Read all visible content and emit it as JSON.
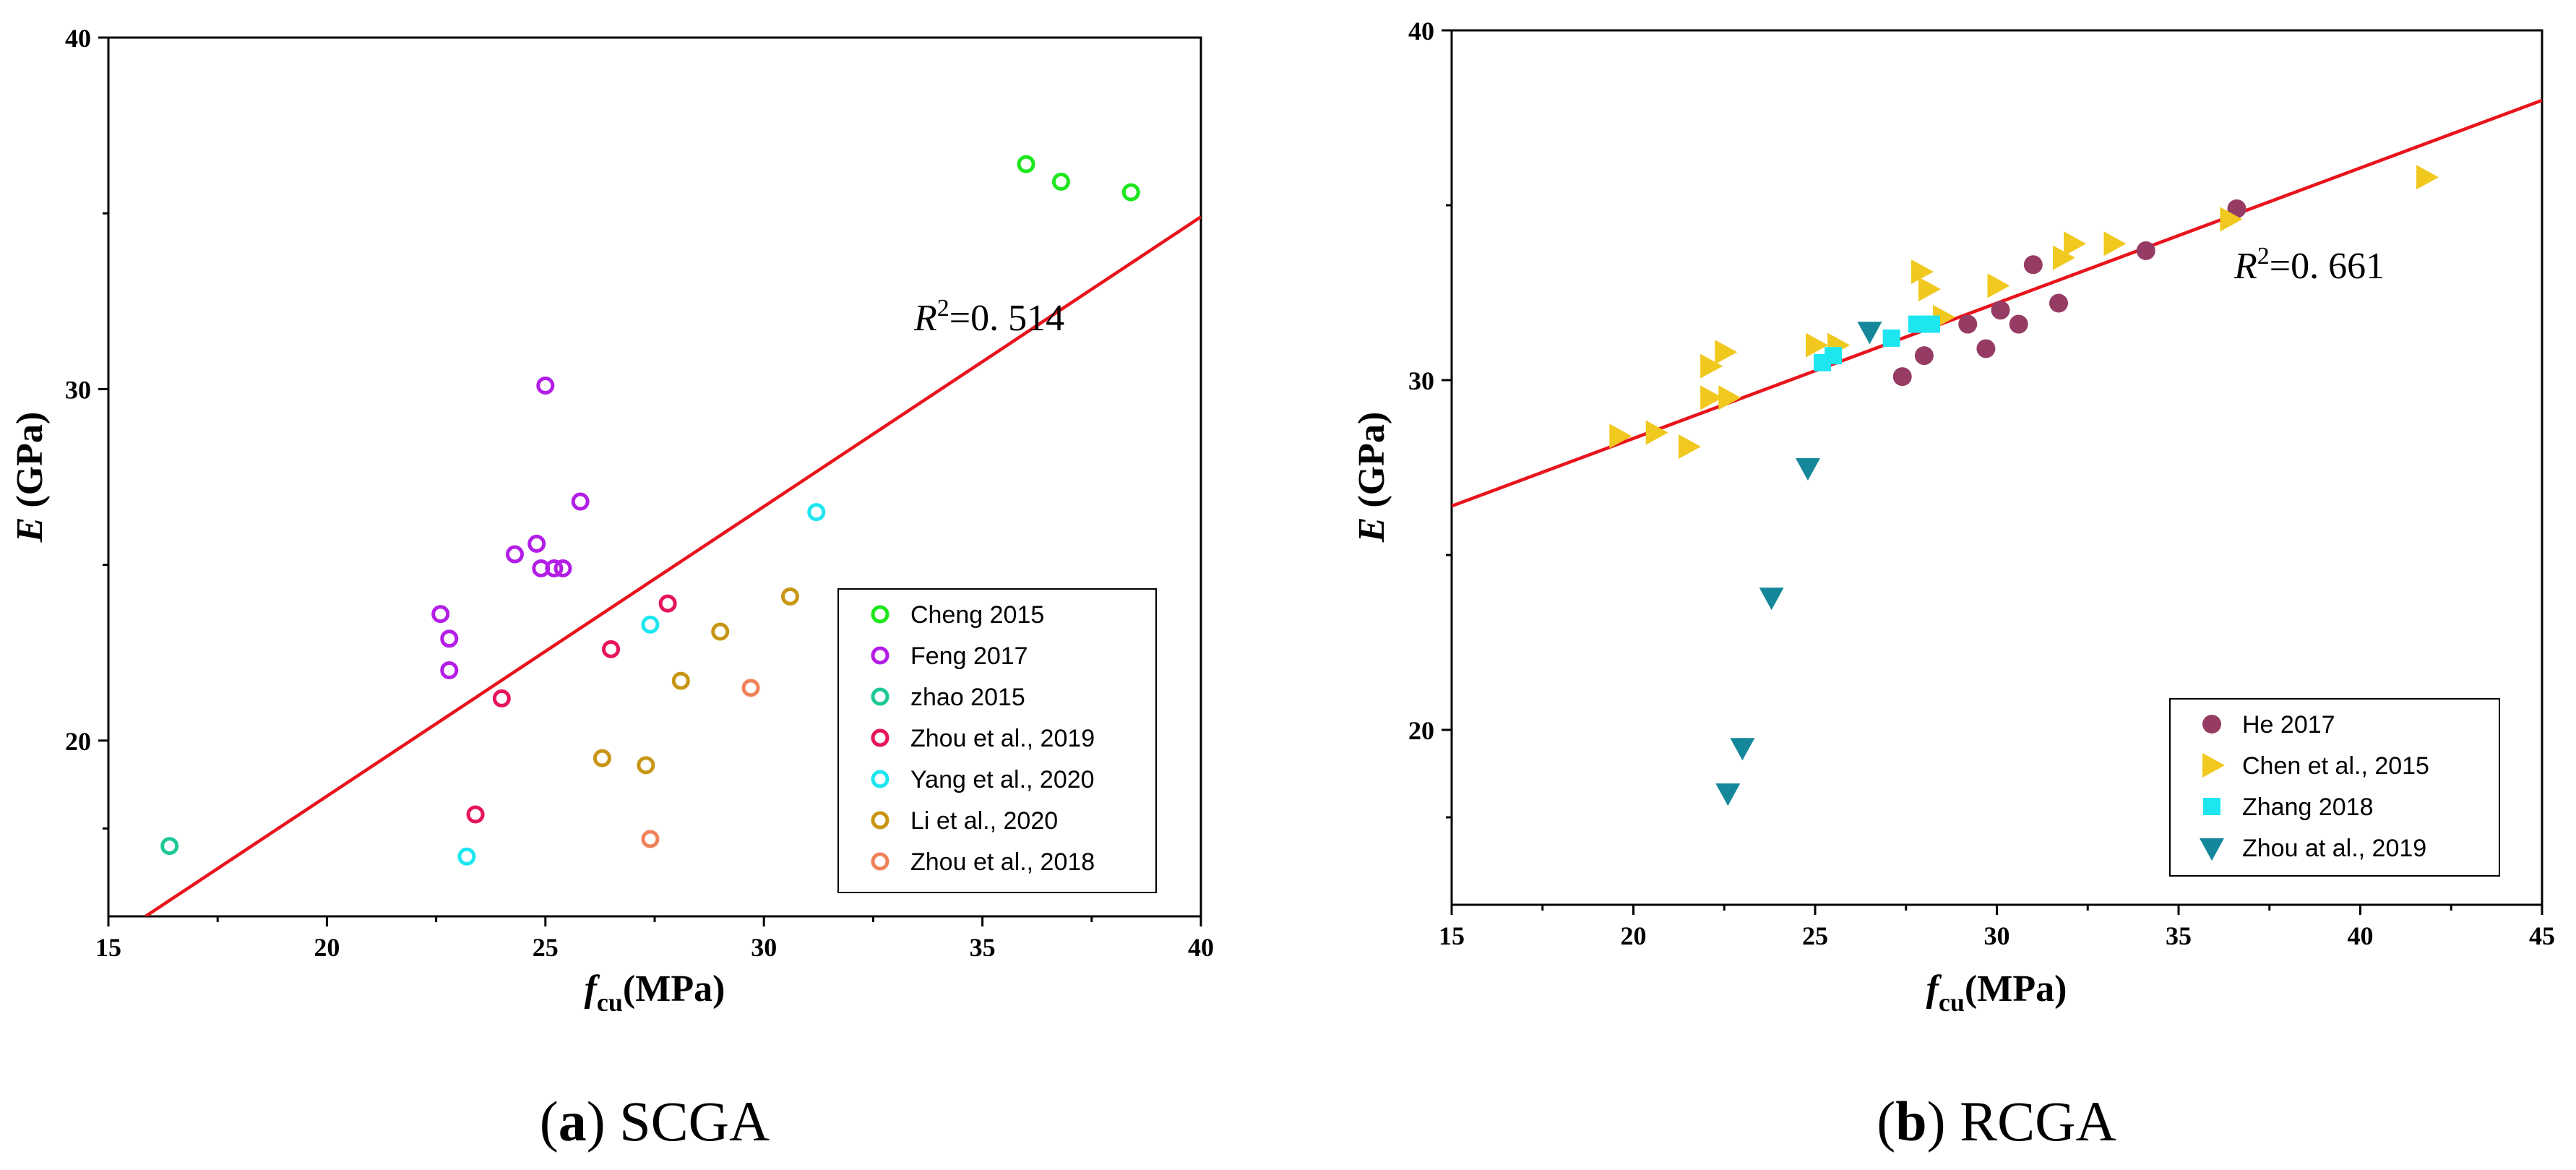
{
  "chart_data": [
    {
      "type": "scatter",
      "panel": "a",
      "caption_letter": "a",
      "caption_text": "SCGA",
      "xlabel_main": "f",
      "xlabel_sub": "cu",
      "xlabel_unit": "(MPa)",
      "ylabel_main": "E",
      "ylabel_unit": " (GPa)",
      "xlim": [
        15,
        40
      ],
      "ylim": [
        15,
        40
      ],
      "xticks": [
        15,
        20,
        25,
        30,
        35,
        40
      ],
      "yticks": [
        20,
        30,
        40
      ],
      "annotation_r": "R",
      "annotation_sup": "2",
      "annotation_val": "=0. 514",
      "fit_line": {
        "x": [
          15.85,
          40
        ],
        "y": [
          15,
          34.9
        ],
        "color": "#e8141c"
      },
      "legend_position": "lower-right",
      "series": [
        {
          "name": "Cheng 2015",
          "marker": "open-circle",
          "color": "#1ee61e",
          "points": [
            [
              36.0,
              36.4
            ],
            [
              36.8,
              35.9
            ],
            [
              38.4,
              35.6
            ]
          ]
        },
        {
          "name": "Feng 2017",
          "marker": "open-circle",
          "color": "#b31ee6",
          "points": [
            [
              25.0,
              30.1
            ],
            [
              25.8,
              26.8
            ],
            [
              24.8,
              25.6
            ],
            [
              24.3,
              25.3
            ],
            [
              24.9,
              24.9
            ],
            [
              25.2,
              24.9
            ],
            [
              25.4,
              24.9
            ],
            [
              22.6,
              23.6
            ],
            [
              22.8,
              22.9
            ],
            [
              22.8,
              22.0
            ]
          ]
        },
        {
          "name": "zhao 2015",
          "marker": "open-circle",
          "color": "#1ec896",
          "points": [
            [
              16.4,
              17.0
            ]
          ]
        },
        {
          "name": "Zhou et al., 2019",
          "marker": "open-circle",
          "color": "#e6145a",
          "points": [
            [
              27.8,
              23.9
            ],
            [
              26.5,
              22.6
            ],
            [
              24.0,
              21.2
            ],
            [
              23.4,
              17.9
            ]
          ]
        },
        {
          "name": "Yang et al., 2020",
          "marker": "open-circle",
          "color": "#1ee6f0",
          "points": [
            [
              31.2,
              26.5
            ],
            [
              27.4,
              23.3
            ],
            [
              23.2,
              16.7
            ]
          ]
        },
        {
          "name": "Li et al., 2020",
          "marker": "open-circle",
          "color": "#c89614",
          "points": [
            [
              30.6,
              24.1
            ],
            [
              29.0,
              23.1
            ],
            [
              28.1,
              21.7
            ],
            [
              26.3,
              19.5
            ],
            [
              27.3,
              19.3
            ]
          ]
        },
        {
          "name": "Zhou et al., 2018",
          "marker": "open-circle",
          "color": "#f0825a",
          "points": [
            [
              29.7,
              21.5
            ],
            [
              27.4,
              17.2
            ]
          ]
        }
      ]
    },
    {
      "type": "scatter",
      "panel": "b",
      "caption_letter": "b",
      "caption_text": "RCGA",
      "xlabel_main": "f",
      "xlabel_sub": "cu",
      "xlabel_unit": "(MPa)",
      "ylabel_main": "E",
      "ylabel_unit": " (GPa)",
      "xlim": [
        15,
        45
      ],
      "ylim": [
        15,
        40
      ],
      "xticks": [
        15,
        20,
        25,
        30,
        35,
        40,
        45
      ],
      "yticks": [
        20,
        30,
        40
      ],
      "annotation_r": "R",
      "annotation_sup": "2",
      "annotation_val": "=0. 661",
      "fit_line": {
        "x": [
          15,
          45
        ],
        "y": [
          26.4,
          38.0
        ],
        "color": "#e8141c"
      },
      "legend_position": "lower-right",
      "series": [
        {
          "name": "He 2017",
          "marker": "filled-circle",
          "color": "#963c64",
          "points": [
            [
              36.6,
              34.9
            ],
            [
              34.1,
              33.7
            ],
            [
              31.0,
              33.3
            ],
            [
              31.7,
              32.2
            ],
            [
              30.1,
              32.0
            ],
            [
              29.2,
              31.6
            ],
            [
              30.6,
              31.6
            ],
            [
              28.0,
              30.7
            ],
            [
              29.7,
              30.9
            ],
            [
              27.4,
              30.1
            ]
          ]
        },
        {
          "name": "Chen et al., 2015",
          "marker": "triangle-right",
          "color": "#f0c81e",
          "points": [
            [
              41.8,
              35.8
            ],
            [
              36.4,
              34.6
            ],
            [
              33.2,
              33.9
            ],
            [
              32.1,
              33.9
            ],
            [
              31.8,
              33.5
            ],
            [
              27.9,
              33.1
            ],
            [
              28.1,
              32.6
            ],
            [
              30.0,
              32.7
            ],
            [
              28.5,
              31.8
            ],
            [
              25.0,
              31.0
            ],
            [
              25.6,
              31.0
            ],
            [
              22.5,
              30.8
            ],
            [
              22.1,
              30.4
            ],
            [
              22.1,
              29.5
            ],
            [
              22.6,
              29.5
            ],
            [
              20.6,
              28.5
            ],
            [
              19.6,
              28.4
            ],
            [
              21.5,
              28.1
            ]
          ]
        },
        {
          "name": "Zhang 2018",
          "marker": "filled-square",
          "color": "#1ee6f0",
          "points": [
            [
              27.8,
              31.6
            ],
            [
              28.2,
              31.6
            ],
            [
              27.1,
              31.2
            ],
            [
              25.5,
              30.7
            ],
            [
              25.2,
              30.5
            ]
          ]
        },
        {
          "name": "Zhou at al., 2019",
          "marker": "triangle-down",
          "color": "#14879b",
          "points": [
            [
              26.5,
              31.4
            ],
            [
              24.8,
              27.5
            ],
            [
              23.8,
              23.8
            ],
            [
              23.0,
              19.5
            ],
            [
              22.6,
              18.2
            ]
          ]
        }
      ]
    }
  ]
}
